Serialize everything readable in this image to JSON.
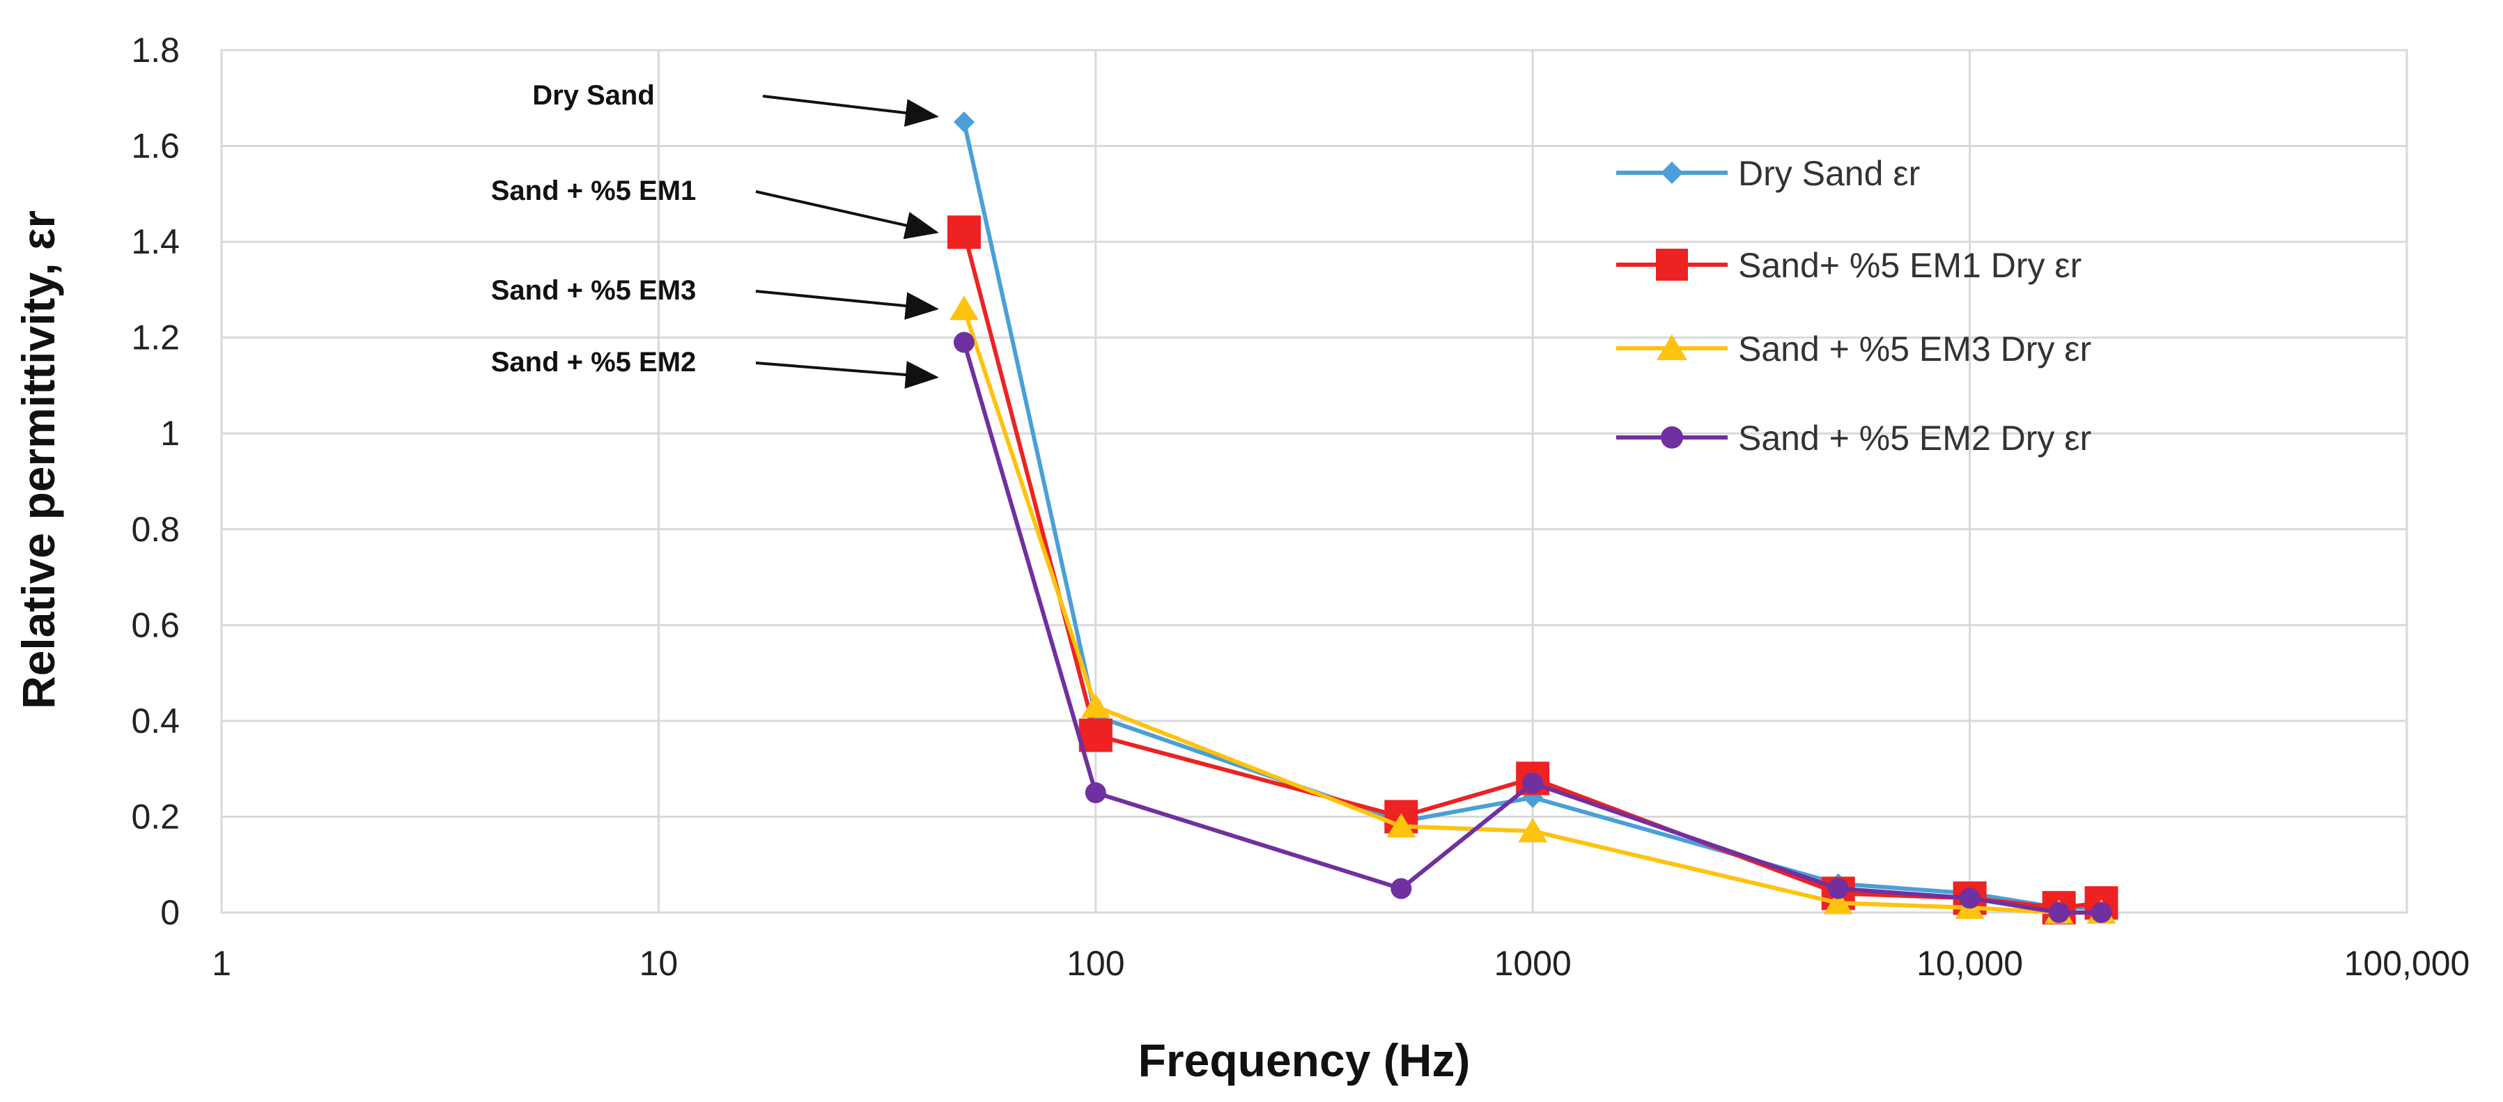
{
  "chart_data": {
    "type": "line",
    "xscale": "log",
    "xlabel": "Frequency (Hz)",
    "ylabel": "Relative permittivity, εr",
    "xlim": [
      1,
      100000
    ],
    "ylim": [
      0,
      1.8
    ],
    "grid": true,
    "legend_position": "top-right",
    "x_ticks": [
      {
        "value": 1,
        "label": "1"
      },
      {
        "value": 10,
        "label": "10"
      },
      {
        "value": 100,
        "label": "100"
      },
      {
        "value": 1000,
        "label": "1000"
      },
      {
        "value": 10000,
        "label": "10,000"
      },
      {
        "value": 100000,
        "label": "100,000"
      }
    ],
    "y_ticks": [
      {
        "value": 0,
        "label": "0"
      },
      {
        "value": 0.2,
        "label": "0.2"
      },
      {
        "value": 0.4,
        "label": "0.4"
      },
      {
        "value": 0.6,
        "label": "0.6"
      },
      {
        "value": 0.8,
        "label": "0.8"
      },
      {
        "value": 1,
        "label": "1"
      },
      {
        "value": 1.2,
        "label": "1.2"
      },
      {
        "value": 1.4,
        "label": "1.4"
      },
      {
        "value": 1.6,
        "label": "1.6"
      },
      {
        "value": 1.8,
        "label": "1.8"
      }
    ],
    "series": [
      {
        "name": "Dry Sand εr",
        "color": "#4a9fd8",
        "marker": "diamond",
        "x": [
          50,
          100,
          500,
          1000,
          5000,
          10000,
          16000,
          20000
        ],
        "y": [
          1.65,
          0.41,
          0.19,
          0.24,
          0.06,
          0.04,
          0.01,
          0.01
        ]
      },
      {
        "name": "Sand+ %5 EM1 Dry εr",
        "color": "#ee2222",
        "marker": "square",
        "x": [
          50,
          100,
          500,
          1000,
          5000,
          10000,
          16000,
          20000
        ],
        "y": [
          1.42,
          0.37,
          0.2,
          0.28,
          0.04,
          0.03,
          0.01,
          0.02
        ]
      },
      {
        "name": "Sand + %5 EM3 Dry εr",
        "color": "#ffc20e",
        "marker": "triangle",
        "x": [
          50,
          100,
          500,
          1000,
          5000,
          10000,
          16000,
          20000
        ],
        "y": [
          1.26,
          0.43,
          0.18,
          0.17,
          0.02,
          0.01,
          0.0,
          0.0
        ]
      },
      {
        "name": "Sand + %5 EM2 Dry εr",
        "color": "#7030a0",
        "marker": "circle",
        "x": [
          50,
          100,
          500,
          1000,
          5000,
          10000,
          16000,
          20000
        ],
        "y": [
          1.19,
          0.25,
          0.05,
          0.27,
          0.05,
          0.03,
          0.0,
          0.0
        ]
      }
    ],
    "annotations": [
      {
        "text": "Dry Sand",
        "points_to_series": 0
      },
      {
        "text": "Sand + %5 EM1",
        "points_to_series": 1
      },
      {
        "text": "Sand + %5 EM3",
        "points_to_series": 2
      },
      {
        "text": "Sand + %5 EM2",
        "points_to_series": 3
      }
    ]
  }
}
